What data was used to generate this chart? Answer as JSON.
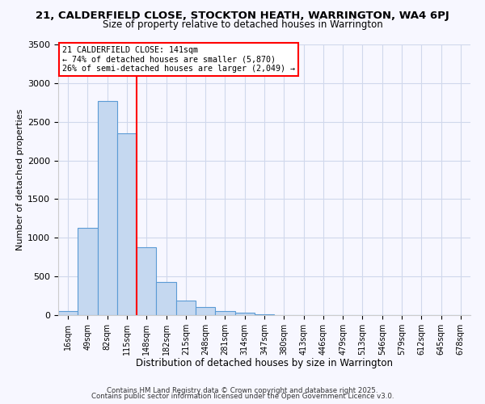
{
  "title": "21, CALDERFIELD CLOSE, STOCKTON HEATH, WARRINGTON, WA4 6PJ",
  "subtitle": "Size of property relative to detached houses in Warrington",
  "xlabel": "Distribution of detached houses by size in Warrington",
  "ylabel": "Number of detached properties",
  "bar_labels": [
    "16sqm",
    "49sqm",
    "82sqm",
    "115sqm",
    "148sqm",
    "182sqm",
    "215sqm",
    "248sqm",
    "281sqm",
    "314sqm",
    "347sqm",
    "380sqm",
    "413sqm",
    "446sqm",
    "479sqm",
    "513sqm",
    "546sqm",
    "579sqm",
    "612sqm",
    "645sqm",
    "678sqm"
  ],
  "bar_values": [
    50,
    1130,
    2770,
    2350,
    880,
    430,
    185,
    105,
    50,
    28,
    10,
    5,
    2,
    1,
    0,
    0,
    0,
    0,
    0,
    0,
    0
  ],
  "bar_color": "#c5d8f0",
  "bar_edge_color": "#5b9bd5",
  "vline_pos": 3.5,
  "vline_color": "red",
  "annotation_title": "21 CALDERFIELD CLOSE: 141sqm",
  "annotation_line1": "← 74% of detached houses are smaller (5,870)",
  "annotation_line2": "26% of semi-detached houses are larger (2,049) →",
  "annotation_box_color": "white",
  "annotation_box_edge_color": "red",
  "ylim": [
    0,
    3500
  ],
  "yticks": [
    0,
    500,
    1000,
    1500,
    2000,
    2500,
    3000,
    3500
  ],
  "footer1": "Contains HM Land Registry data © Crown copyright and database right 2025.",
  "footer2": "Contains public sector information licensed under the Open Government Licence v3.0.",
  "bg_color": "#f7f7ff",
  "grid_color": "#d0d8ec"
}
